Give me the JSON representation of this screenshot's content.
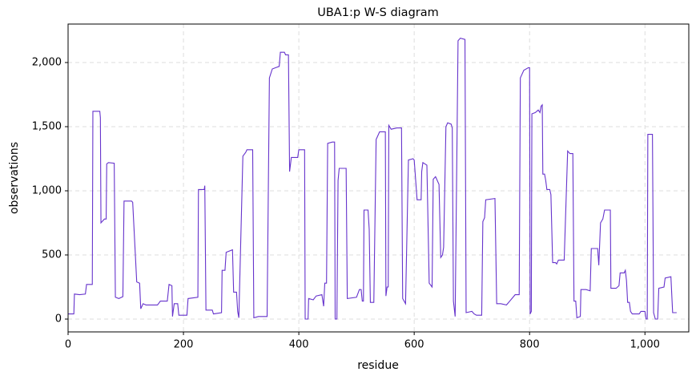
{
  "chart_data": {
    "type": "line",
    "title": "UBA1:p W-S diagram",
    "x_label": "residue",
    "y_label": "observations",
    "xlim": [
      0,
      1076
    ],
    "ylim": [
      -100,
      2300
    ],
    "xticks": [
      0,
      200,
      400,
      600,
      800,
      {
        "value": 1000,
        "label": "1,000"
      }
    ],
    "yticks": [
      0,
      500,
      {
        "value": 1000,
        "label": "1,000"
      },
      {
        "value": 1500,
        "label": "1,500"
      },
      {
        "value": 2000,
        "label": "2,000"
      }
    ],
    "grid": true,
    "x": [
      0,
      10,
      11,
      20,
      30,
      32,
      42,
      43,
      55,
      56,
      57,
      63,
      66,
      67,
      70,
      80,
      82,
      88,
      95,
      97,
      110,
      112,
      119,
      124,
      126,
      130,
      135,
      155,
      160,
      172,
      175,
      180,
      181,
      184,
      190,
      192,
      206,
      208,
      225,
      226,
      236,
      237,
      239,
      250,
      252,
      266,
      267,
      272,
      274,
      285,
      287,
      292,
      294,
      296,
      303,
      308,
      310,
      320,
      322,
      330,
      345,
      349,
      354,
      360,
      366,
      368,
      375,
      377,
      382,
      384,
      387,
      398,
      400,
      410,
      411,
      416,
      417,
      425,
      430,
      440,
      443,
      445,
      448,
      450,
      458,
      462,
      463,
      466,
      468,
      470,
      482,
      484,
      500,
      505,
      508,
      510,
      512,
      513,
      520,
      522,
      524,
      530,
      534,
      538,
      540,
      550,
      551,
      553,
      555,
      556,
      560,
      570,
      578,
      580,
      585,
      590,
      598,
      600,
      605,
      612,
      613,
      615,
      622,
      626,
      631,
      633,
      637,
      643,
      646,
      649,
      651,
      655,
      658,
      664,
      666,
      668,
      671,
      676,
      680,
      688,
      690,
      700,
      704,
      708,
      717,
      719,
      722,
      724,
      740,
      743,
      750,
      760,
      775,
      782,
      784,
      790,
      798,
      800,
      801,
      803,
      804,
      810,
      815,
      818,
      820,
      822,
      823,
      826,
      828,
      830,
      835,
      837,
      840,
      845,
      847,
      850,
      860,
      866,
      870,
      875,
      877,
      880,
      882,
      888,
      889,
      898,
      905,
      907,
      918,
      920,
      923,
      927,
      930,
      940,
      941,
      950,
      955,
      957,
      964,
      966,
      968,
      970,
      973,
      975,
      978,
      990,
      993,
      1000,
      1002,
      1004,
      1005,
      1013,
      1015,
      1018,
      1022,
      1024,
      1033,
      1035,
      1045,
      1048,
      1055
    ],
    "series": [
      {
        "name": "observations",
        "color": "#6633cc",
        "values": [
          40,
          40,
          195,
          190,
          195,
          270,
          270,
          1620,
          1620,
          1570,
          750,
          780,
          780,
          1210,
          1220,
          1215,
          170,
          160,
          175,
          920,
          920,
          910,
          290,
          280,
          80,
          120,
          110,
          110,
          140,
          140,
          270,
          260,
          20,
          120,
          120,
          30,
          30,
          160,
          170,
          1010,
          1010,
          1040,
          70,
          70,
          40,
          50,
          380,
          380,
          520,
          540,
          210,
          210,
          60,
          10,
          1270,
          1300,
          1320,
          1320,
          10,
          20,
          20,
          1880,
          1950,
          1960,
          1970,
          2080,
          2080,
          2060,
          2060,
          1150,
          1260,
          1260,
          1320,
          1320,
          0,
          0,
          160,
          150,
          180,
          190,
          100,
          280,
          280,
          1370,
          1380,
          1380,
          0,
          0,
          1080,
          1175,
          1175,
          160,
          170,
          230,
          230,
          140,
          140,
          850,
          850,
          700,
          130,
          130,
          1400,
          1440,
          1460,
          1460,
          180,
          250,
          250,
          1510,
          1480,
          1490,
          1490,
          160,
          120,
          1240,
          1250,
          1240,
          930,
          930,
          1150,
          1220,
          1200,
          280,
          250,
          1090,
          1110,
          1050,
          480,
          500,
          560,
          1500,
          1530,
          1520,
          1490,
          140,
          20,
          2170,
          2190,
          2180,
          50,
          60,
          40,
          30,
          30,
          760,
          790,
          930,
          940,
          120,
          120,
          110,
          190,
          190,
          1880,
          1940,
          1960,
          1960,
          40,
          60,
          1600,
          1610,
          1630,
          1610,
          1660,
          1670,
          1130,
          1130,
          1080,
          1010,
          1010,
          970,
          440,
          440,
          430,
          460,
          460,
          1310,
          1290,
          1290,
          140,
          140,
          10,
          20,
          230,
          230,
          220,
          550,
          550,
          420,
          750,
          780,
          850,
          850,
          240,
          240,
          260,
          360,
          360,
          380,
          300,
          130,
          130,
          60,
          40,
          40,
          60,
          60,
          0,
          0,
          1440,
          1440,
          50,
          0,
          0,
          240,
          250,
          320,
          330,
          50,
          50
        ]
      }
    ]
  }
}
